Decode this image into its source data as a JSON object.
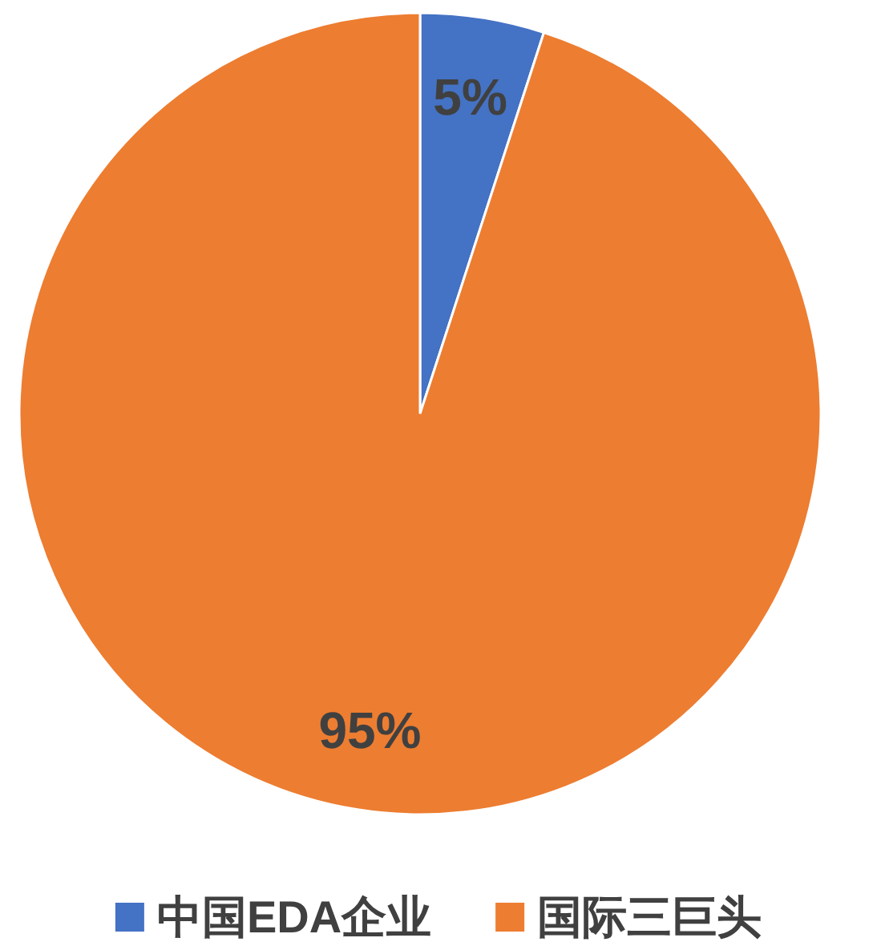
{
  "chart_data": {
    "type": "pie",
    "categories": [
      "中国EDA企业",
      "国际三巨头"
    ],
    "values": [
      5,
      95
    ],
    "colors": [
      "#4472c4",
      "#ed7d31"
    ],
    "value_labels": [
      "5%",
      "95%"
    ],
    "legend": "bottom"
  }
}
